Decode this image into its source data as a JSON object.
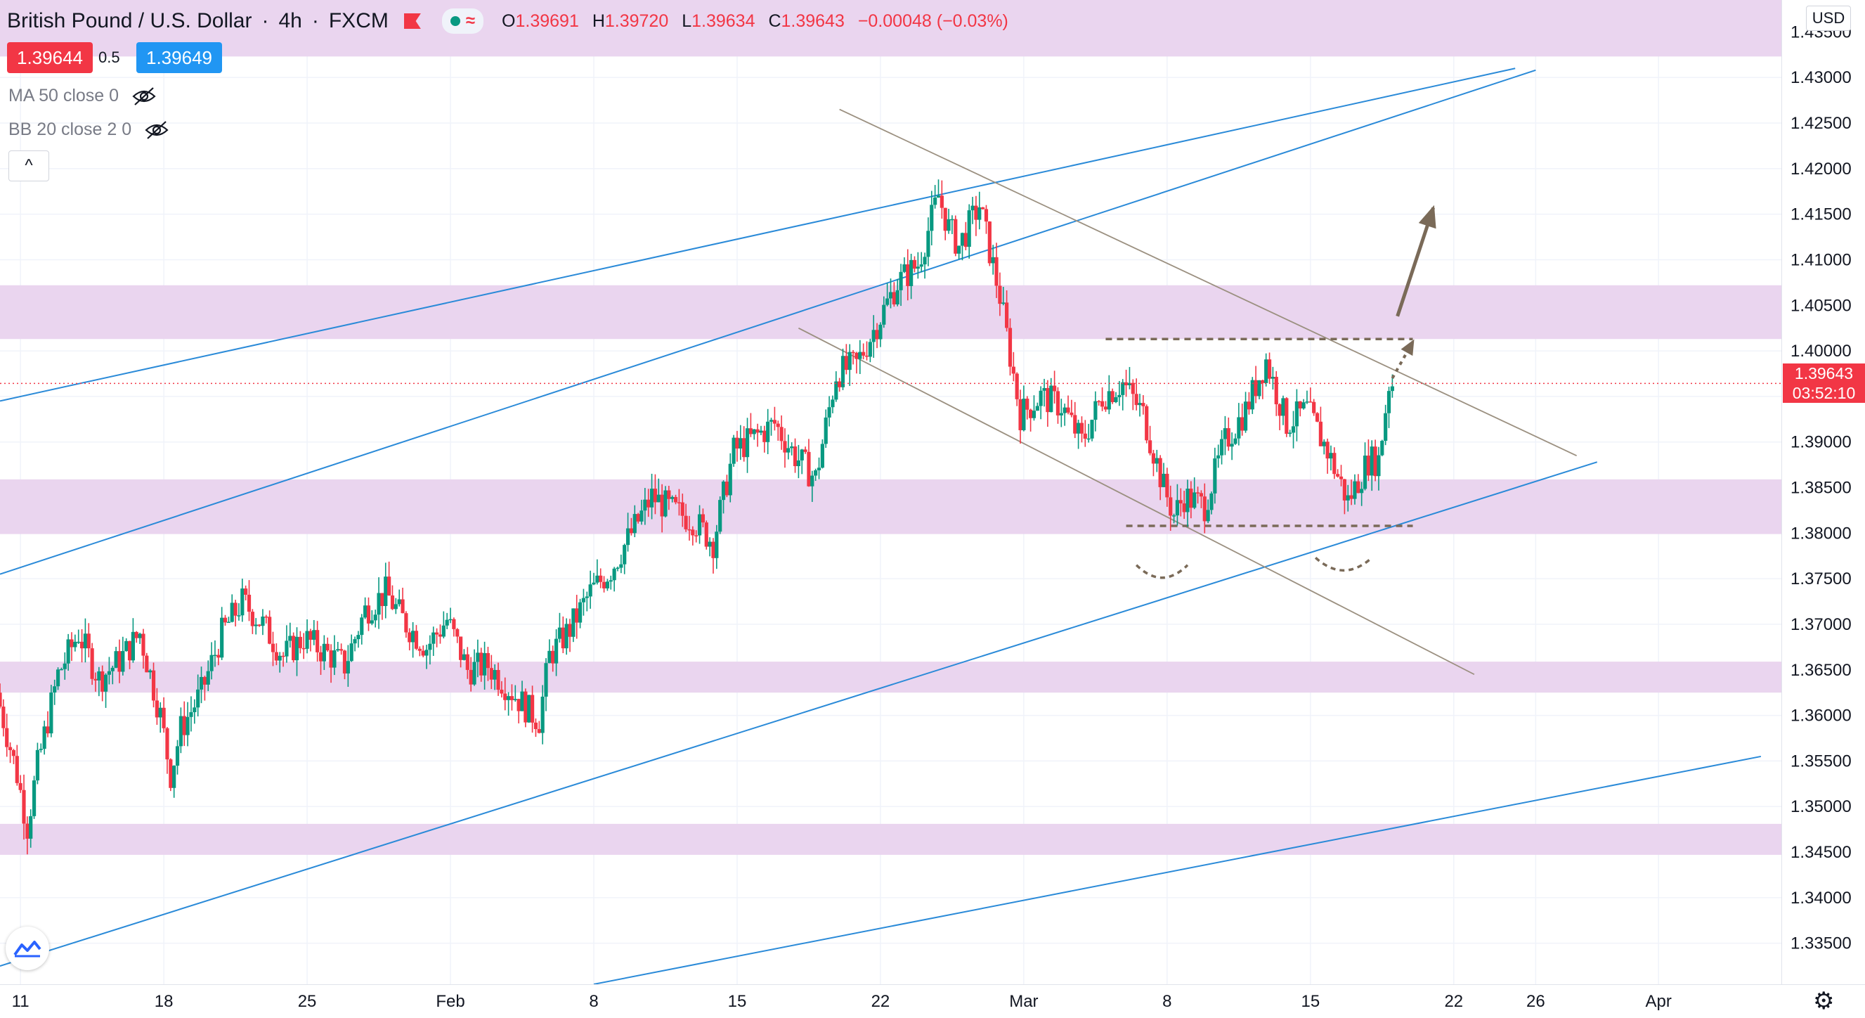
{
  "header": {
    "symbol": "British Pound / U.S. Dollar",
    "interval": "4h",
    "exchange": "FXCM",
    "wave_icon": "≈",
    "ohlc": {
      "o_label": "O",
      "o": "1.39691",
      "h_label": "H",
      "h": "1.39720",
      "l_label": "L",
      "l": "1.39634",
      "c_label": "C",
      "c": "1.39643",
      "change": "−0.00048 (−0.03%)"
    }
  },
  "trade": {
    "sell": "1.39644",
    "spread": "0.5",
    "buy": "1.39649"
  },
  "indicators": [
    {
      "label": "MA 50 close 0"
    },
    {
      "label": "BB 20 close 2 0"
    }
  ],
  "collapse_icon": "^",
  "axis": {
    "currency": "USD",
    "last_price": "1.39643",
    "countdown": "03:52:10",
    "settings_icon": "gear-icon"
  },
  "colors": {
    "up": "#089981",
    "down": "#f23645",
    "zone": "#e9d3ee",
    "channel": "#2a8ad8",
    "trend": "#9b9080",
    "annotation": "#7a6a58"
  },
  "chart_data": {
    "type": "candlestick",
    "symbol": "GBPUSD",
    "ylim": [
      1.3305,
      1.4385
    ],
    "yticks": [
      1.335,
      1.34,
      1.345,
      1.35,
      1.355,
      1.36,
      1.365,
      1.37,
      1.375,
      1.38,
      1.385,
      1.39,
      1.395,
      1.4,
      1.405,
      1.41,
      1.415,
      1.42,
      1.425,
      1.43,
      1.435
    ],
    "ytick_labels": [
      "1.33500",
      "1.34000",
      "1.34500",
      "1.35000",
      "1.35500",
      "1.36000",
      "1.36500",
      "1.37000",
      "1.37500",
      "1.38000",
      "1.38500",
      "1.39000",
      "1.39500",
      "1.40000",
      "1.40500",
      "1.41000",
      "1.41500",
      "1.42000",
      "1.42500",
      "1.43000",
      "1.43500"
    ],
    "xlim": [
      "2021-01-10",
      "2021-04-07"
    ],
    "xticks": [
      {
        "label": "11",
        "date": "2021-01-11"
      },
      {
        "label": "18",
        "date": "2021-01-18"
      },
      {
        "label": "25",
        "date": "2021-01-25"
      },
      {
        "label": "Feb",
        "date": "2021-02-01"
      },
      {
        "label": "8",
        "date": "2021-02-08"
      },
      {
        "label": "15",
        "date": "2021-02-15"
      },
      {
        "label": "22",
        "date": "2021-02-22"
      },
      {
        "label": "Mar",
        "date": "2021-03-01"
      },
      {
        "label": "8",
        "date": "2021-03-08"
      },
      {
        "label": "15",
        "date": "2021-03-15"
      },
      {
        "label": "22",
        "date": "2021-03-22"
      },
      {
        "label": "26",
        "date": "2021-03-26"
      },
      {
        "label": "Apr",
        "date": "2021-04-01"
      }
    ],
    "last_price": 1.39643,
    "grid": true,
    "zones": [
      [
        1.4323,
        1.4385
      ],
      [
        1.4013,
        1.4072
      ],
      [
        1.3799,
        1.3859
      ],
      [
        1.3625,
        1.3659
      ],
      [
        1.3447,
        1.3481
      ]
    ],
    "close_path": [
      [
        "2021-01-10",
        1.3625
      ],
      [
        "2021-01-11",
        1.3535
      ],
      [
        "2021-01-11 12:00",
        1.3478
      ],
      [
        "2021-01-12",
        1.3545
      ],
      [
        "2021-01-13",
        1.3645
      ],
      [
        "2021-01-14",
        1.369
      ],
      [
        "2021-01-15",
        1.364
      ],
      [
        "2021-01-16",
        1.366
      ],
      [
        "2021-01-17",
        1.369
      ],
      [
        "2021-01-18",
        1.36
      ],
      [
        "2021-01-18 12:00",
        1.3535
      ],
      [
        "2021-01-19",
        1.3585
      ],
      [
        "2021-01-20",
        1.3625
      ],
      [
        "2021-01-21",
        1.369
      ],
      [
        "2021-01-22",
        1.3725
      ],
      [
        "2021-01-23",
        1.37
      ],
      [
        "2021-01-24",
        1.3665
      ],
      [
        "2021-01-25",
        1.3685
      ],
      [
        "2021-01-26",
        1.367
      ],
      [
        "2021-01-27",
        1.3655
      ],
      [
        "2021-01-28",
        1.3715
      ],
      [
        "2021-01-29",
        1.3735
      ],
      [
        "2021-01-30",
        1.37
      ],
      [
        "2021-01-31",
        1.3675
      ],
      [
        "2021-02-01",
        1.3705
      ],
      [
        "2021-02-02",
        1.365
      ],
      [
        "2021-02-03",
        1.3655
      ],
      [
        "2021-02-04",
        1.363
      ],
      [
        "2021-02-05",
        1.3605
      ],
      [
        "2021-02-05 12:00",
        1.3595
      ],
      [
        "2021-02-06",
        1.3665
      ],
      [
        "2021-02-07",
        1.3695
      ],
      [
        "2021-02-08",
        1.3735
      ],
      [
        "2021-02-09",
        1.376
      ],
      [
        "2021-02-10",
        1.38
      ],
      [
        "2021-02-11",
        1.384
      ],
      [
        "2021-02-12",
        1.3825
      ],
      [
        "2021-02-13",
        1.3815
      ],
      [
        "2021-02-14",
        1.379
      ],
      [
        "2021-02-15",
        1.389
      ],
      [
        "2021-02-16",
        1.3905
      ],
      [
        "2021-02-17",
        1.392
      ],
      [
        "2021-02-18",
        1.3885
      ],
      [
        "2021-02-19",
        1.386
      ],
      [
        "2021-02-20",
        1.3975
      ],
      [
        "2021-02-21",
        1.3985
      ],
      [
        "2021-02-22",
        1.403
      ],
      [
        "2021-02-23",
        1.4075
      ],
      [
        "2021-02-24",
        1.4095
      ],
      [
        "2021-02-25",
        1.417
      ],
      [
        "2021-02-25 12:00",
        1.4135
      ],
      [
        "2021-02-26",
        1.4115
      ],
      [
        "2021-02-27",
        1.416
      ],
      [
        "2021-02-28",
        1.406
      ],
      [
        "2021-03-01",
        1.393
      ],
      [
        "2021-03-02",
        1.395
      ],
      [
        "2021-03-03",
        1.394
      ],
      [
        "2021-03-04",
        1.39
      ],
      [
        "2021-03-05",
        1.395
      ],
      [
        "2021-03-06",
        1.3965
      ],
      [
        "2021-03-07",
        1.393
      ],
      [
        "2021-03-08",
        1.385
      ],
      [
        "2021-03-08 12:00",
        1.382
      ],
      [
        "2021-03-09",
        1.384
      ],
      [
        "2021-03-10",
        1.383
      ],
      [
        "2021-03-11",
        1.39
      ],
      [
        "2021-03-12",
        1.3935
      ],
      [
        "2021-03-13",
        1.399
      ],
      [
        "2021-03-14",
        1.392
      ],
      [
        "2021-03-15",
        1.3935
      ],
      [
        "2021-03-16",
        1.389
      ],
      [
        "2021-03-17",
        1.3835
      ],
      [
        "2021-03-18",
        1.388
      ],
      [
        "2021-03-18 12:00",
        1.388
      ],
      [
        "2021-03-19",
        1.3964
      ]
    ],
    "channel_lines": [
      [
        [
          "2021-01-10",
          1.3945
        ],
        [
          "2021-03-25",
          1.431
        ]
      ],
      [
        [
          "2021-01-10",
          1.3755
        ],
        [
          "2021-03-26",
          1.4308
        ]
      ],
      [
        [
          "2021-01-10",
          1.3325
        ],
        [
          "2021-03-29",
          1.3878
        ]
      ],
      [
        [
          "2021-02-08",
          1.3305
        ],
        [
          "2021-04-06",
          1.3555
        ]
      ]
    ],
    "trend_lines": [
      [
        [
          "2021-02-20",
          1.4265
        ],
        [
          "2021-03-28",
          1.3885
        ]
      ],
      [
        [
          "2021-02-18",
          1.4025
        ],
        [
          "2021-03-23",
          1.3645
        ]
      ]
    ],
    "dashed_levels": [
      [
        [
          "2021-03-05",
          1.4013
        ],
        [
          "2021-03-20",
          1.4013
        ]
      ],
      [
        [
          "2021-03-06",
          1.3808
        ],
        [
          "2021-03-20",
          1.3808
        ]
      ]
    ],
    "annotations": {
      "arrow_main": [
        [
          "2021-03-19 06:00",
          1.4038
        ],
        [
          "2021-03-21",
          1.4157
        ]
      ],
      "arrow_dotted": [
        [
          "2021-03-19",
          1.397
        ],
        [
          "2021-03-20",
          1.401
        ]
      ],
      "arcs": [
        [
          [
            "2021-03-06 12:00",
            1.3765
          ],
          [
            "2021-03-09",
            1.3765
          ]
        ],
        [
          [
            "2021-03-15 06:00",
            1.3773
          ],
          [
            "2021-03-18",
            1.3773
          ]
        ]
      ]
    }
  }
}
